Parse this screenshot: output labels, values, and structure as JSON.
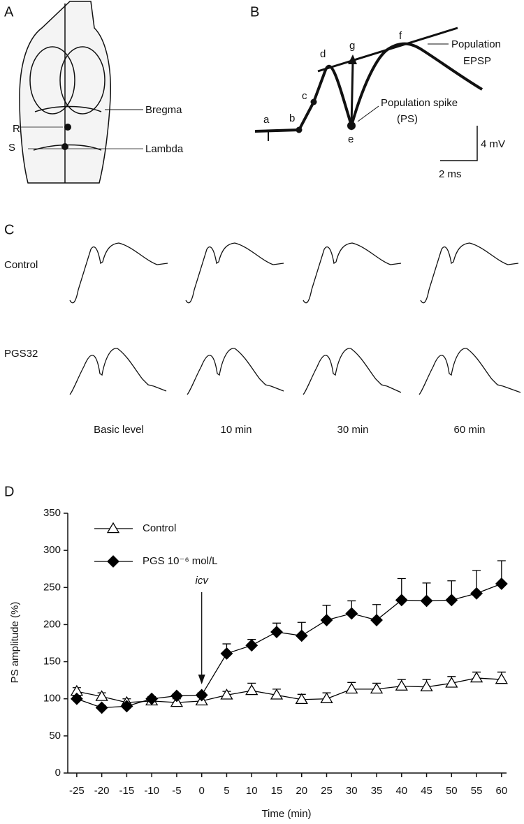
{
  "panels": {
    "a": {
      "label": "A",
      "bregma": "Bregma",
      "lambda": "Lambda",
      "r": "R",
      "s": "S"
    },
    "b": {
      "label": "B",
      "points": [
        "a",
        "b",
        "c",
        "d",
        "e",
        "f",
        "g"
      ],
      "epsp_1": "Population",
      "epsp_2": "EPSP",
      "ps_1": "Population spike",
      "ps_2": "(PS)",
      "voltage": "4 mV",
      "time": "2 ms"
    },
    "c": {
      "label": "C",
      "rows": [
        "Control",
        "PGS32"
      ],
      "columns": [
        "Basic level",
        "10 min",
        "30 min",
        "60 min"
      ]
    },
    "d": {
      "label": "D"
    }
  },
  "chart_data": {
    "type": "line",
    "xlabel": "Time (min)",
    "ylabel": "PS amplitude (%)",
    "annotation": "icv",
    "x": [
      -25,
      -20,
      -15,
      -10,
      -5,
      0,
      5,
      10,
      15,
      20,
      25,
      30,
      35,
      40,
      45,
      50,
      55,
      60
    ],
    "xlim": [
      -26.8,
      61
    ],
    "xticks": [
      -25,
      -20,
      -15,
      -10,
      -5,
      0,
      5,
      10,
      15,
      20,
      25,
      30,
      35,
      40,
      45,
      50,
      55,
      60
    ],
    "ylim": [
      0,
      350
    ],
    "yticks": [
      0,
      50,
      100,
      150,
      200,
      250,
      300,
      350
    ],
    "series": [
      {
        "name": "Control",
        "color": "#000000",
        "fill": "#ffffff",
        "marker": "triangle",
        "values": [
          110,
          103,
          95,
          97,
          95,
          97,
          105,
          111,
          105,
          99,
          100,
          113,
          113,
          117,
          116,
          121,
          128,
          126
        ],
        "errors": [
          5,
          5,
          5,
          5,
          5,
          5,
          5,
          10,
          8,
          7,
          8,
          9,
          8,
          9,
          10,
          9,
          8,
          10
        ]
      },
      {
        "name": "PGS 10⁻⁶ mol/L",
        "color": "#000000",
        "fill": "#000000",
        "marker": "diamond",
        "values": [
          100,
          88,
          90,
          100,
          104,
          105,
          161,
          172,
          190,
          185,
          206,
          215,
          206,
          233,
          232,
          233,
          242,
          255
        ],
        "errors": [
          3,
          3,
          3,
          3,
          3,
          3,
          13,
          8,
          12,
          18,
          20,
          17,
          21,
          29,
          24,
          26,
          31,
          31
        ]
      }
    ]
  }
}
